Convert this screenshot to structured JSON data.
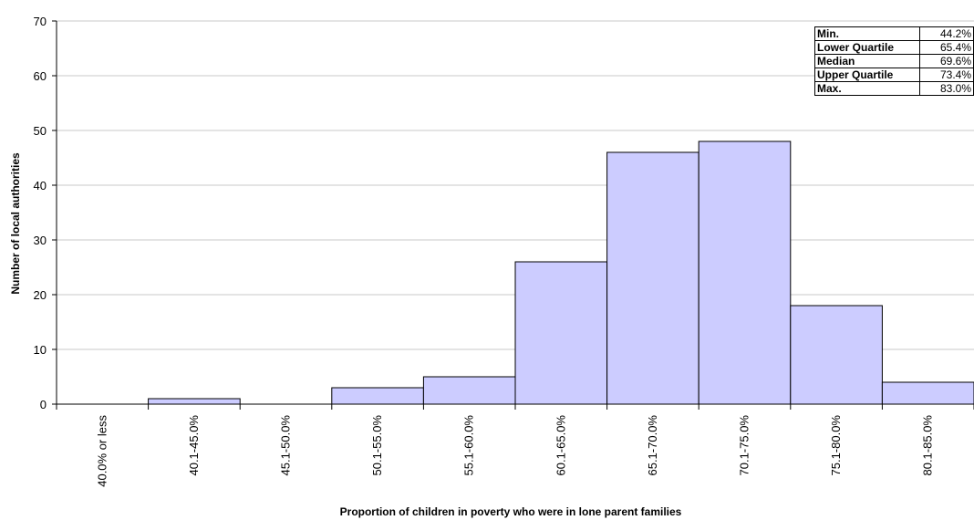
{
  "chart_data": {
    "type": "bar",
    "categories": [
      "40.0% or less",
      "40.1-45.0%",
      "45.1-50.0%",
      "50.1-55.0%",
      "55.1-60.0%",
      "60.1-65.0%",
      "65.1-70.0%",
      "70.1-75.0%",
      "75.1-80.0%",
      "80.1-85.0%"
    ],
    "values": [
      0,
      1,
      0,
      3,
      5,
      26,
      46,
      48,
      18,
      4
    ],
    "xlabel": "Proportion of children in poverty who were in lone parent families",
    "ylabel": "Number of local authorities",
    "ylim": [
      0,
      70
    ],
    "yticks": [
      0,
      10,
      20,
      30,
      40,
      50,
      60,
      70
    ],
    "grid": true,
    "bar_color": "#ccccff",
    "summary_table": [
      {
        "label": "Min.",
        "value": "44.2%"
      },
      {
        "label": "Lower Quartile",
        "value": "65.4%"
      },
      {
        "label": "Median",
        "value": "69.6%"
      },
      {
        "label": "Upper Quartile",
        "value": "73.4%"
      },
      {
        "label": "Max.",
        "value": "83.0%"
      }
    ]
  }
}
